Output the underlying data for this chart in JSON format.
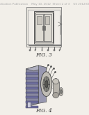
{
  "bg": "#f2efe9",
  "header_color": "#aaaaaa",
  "header_fontsize": 3.0,
  "fig3_label": "FIG. 3",
  "fig4_label": "FIG. 4",
  "label_fontsize": 5.5,
  "dark_line": "#555555",
  "mid_line": "#888888",
  "light_fill": "#e8e5de",
  "mid_fill": "#d0cdc6",
  "dark_fill": "#a8a49c",
  "cab_fill": "#c8c4bc",
  "white_fill": "#f0ede8"
}
